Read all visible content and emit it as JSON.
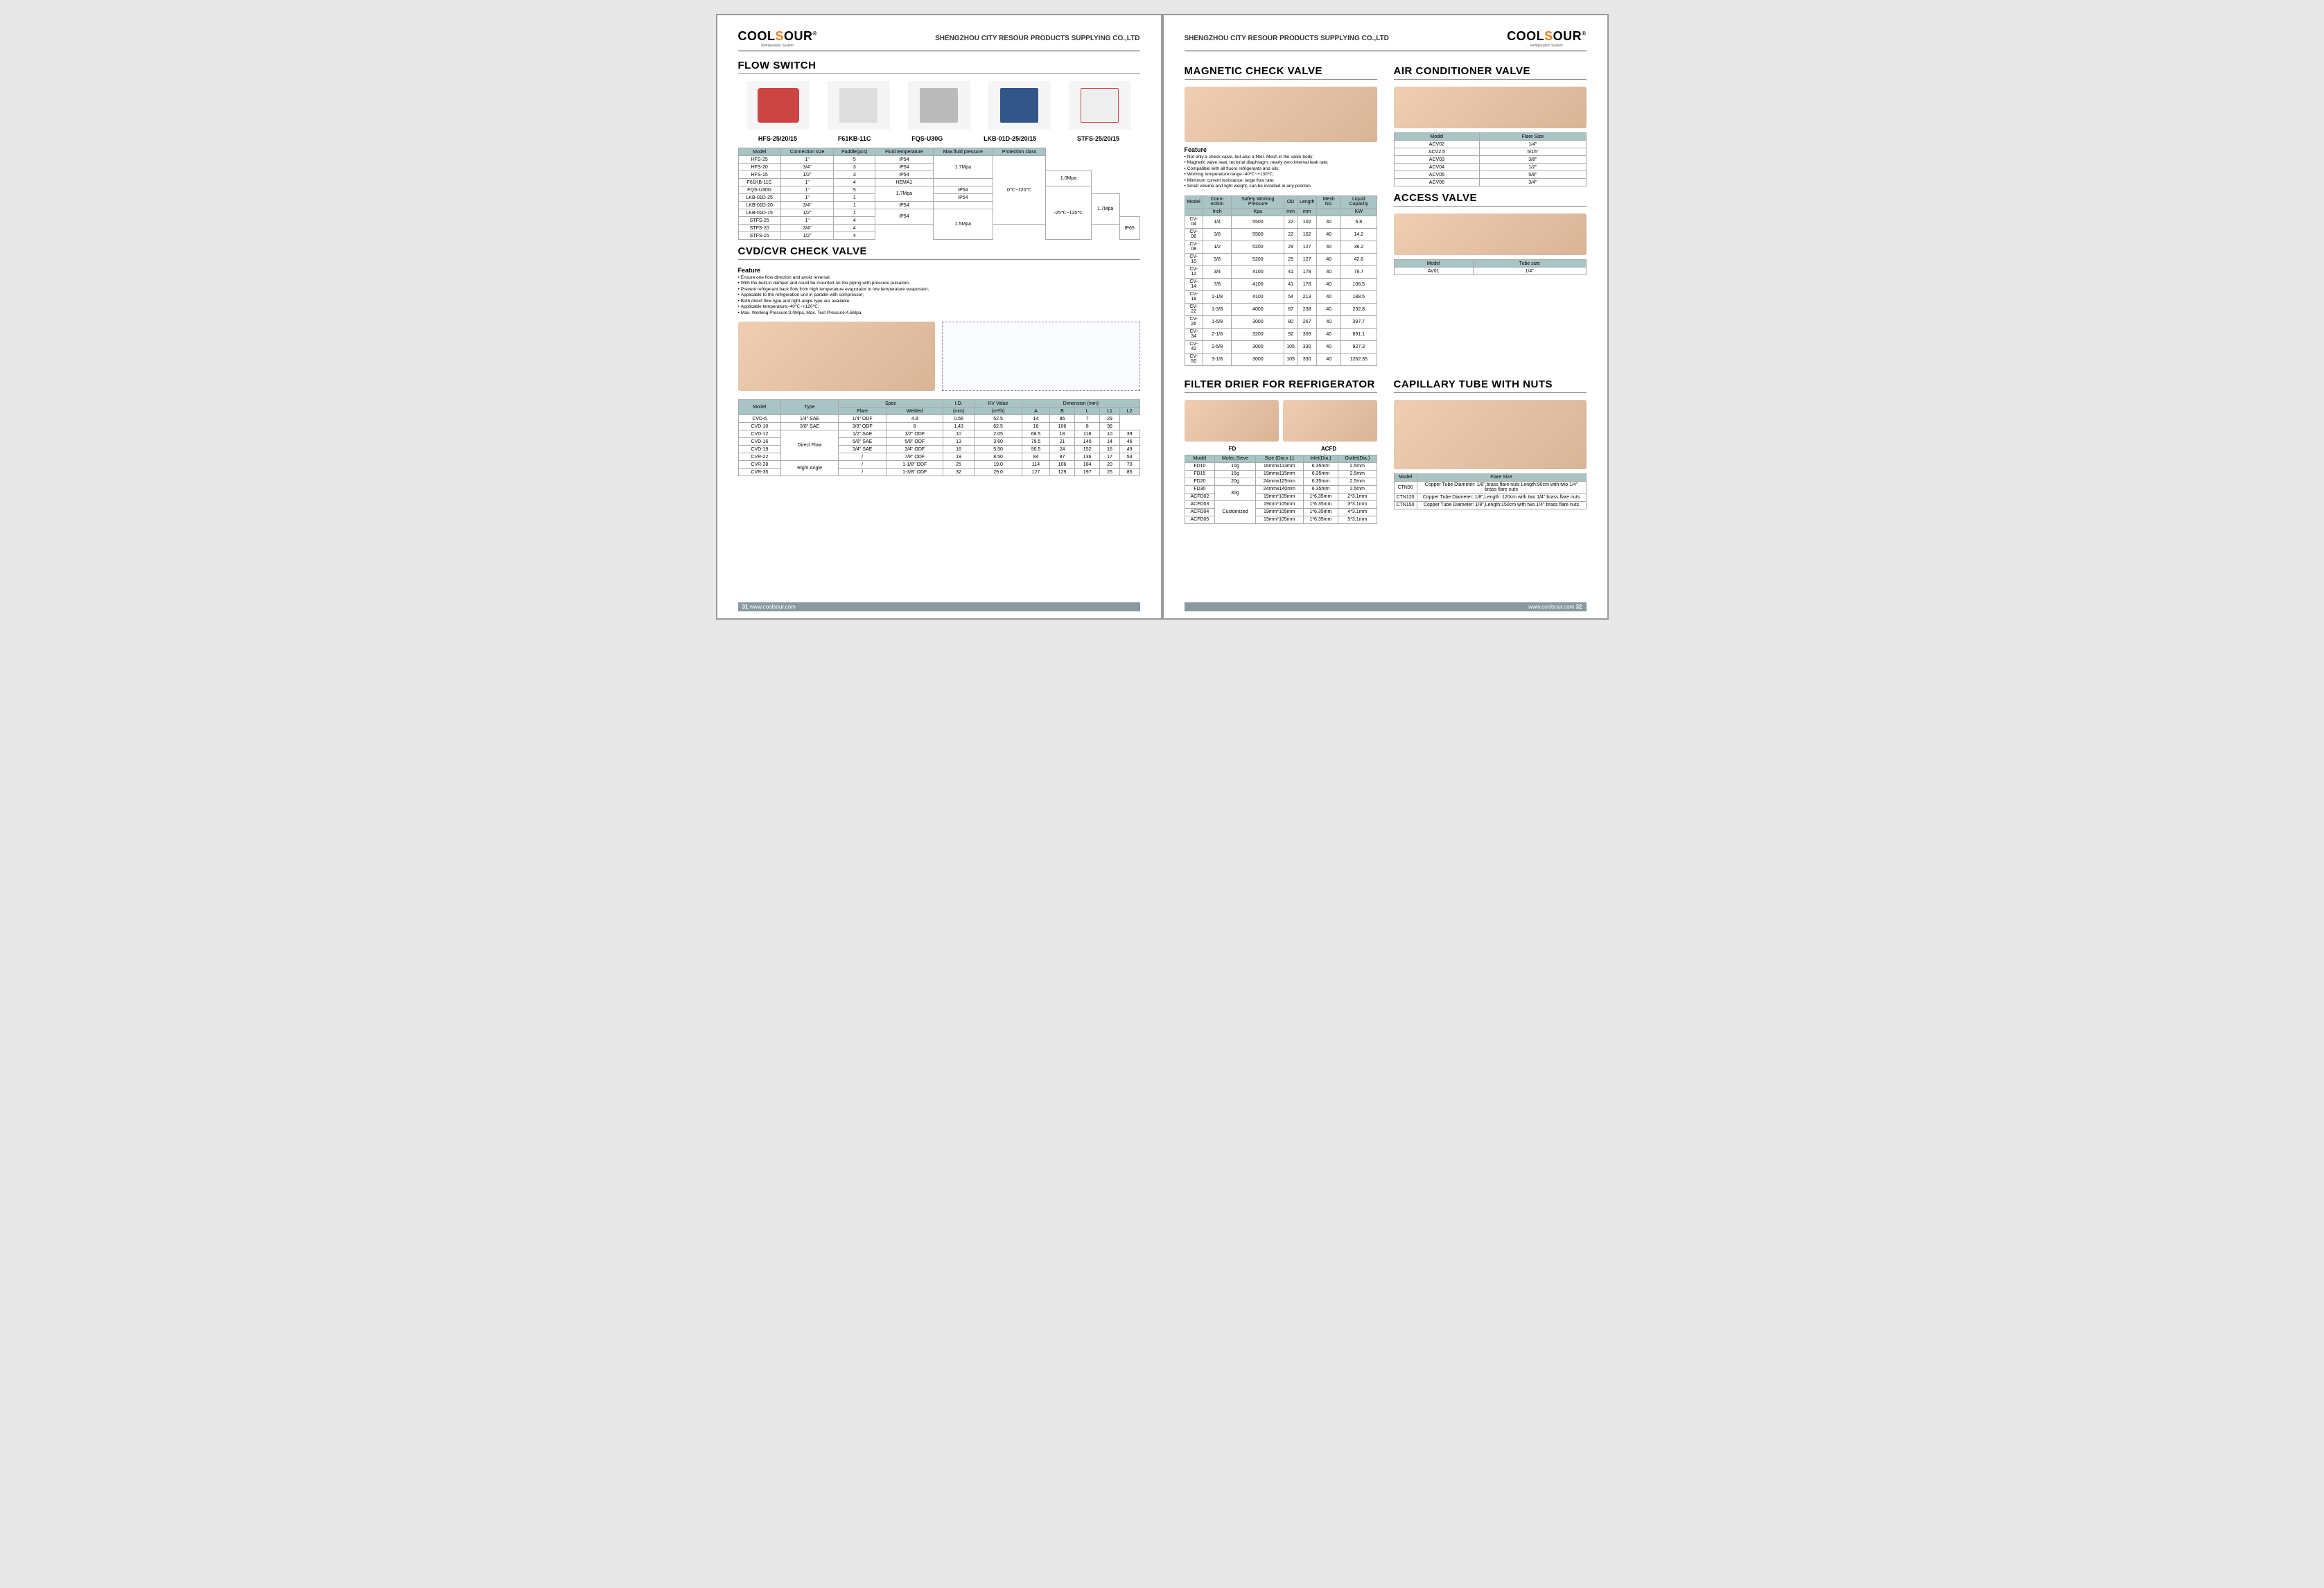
{
  "company": "SHENGZHOU CITY RESOUR PRODUCTS SUPPLYING CO.,LTD",
  "logo": {
    "text1": "COOL",
    "text2": "S",
    "text3": "OUR",
    "sub": "Refrigeration System"
  },
  "website": "www.coolsour.com",
  "page_left": "31",
  "page_right": "32",
  "left": {
    "flow_switch": {
      "title": "FLOW SWITCH",
      "models": [
        "HFS-25/20/15",
        "F61KB-11C",
        "FQS-U30G",
        "LKB-01D-25/20/15",
        "STFS-25/20/15"
      ],
      "table": {
        "headers": [
          "Model",
          "Connection size",
          "Paddle(pcs)",
          "Fluid temperature",
          "Max.fluid pressure",
          "Protection class"
        ],
        "rows": [
          [
            "HFS-25",
            "1\"",
            "5",
            "",
            "",
            "IP54"
          ],
          [
            "HFS-20",
            "3/4\"",
            "3",
            "",
            "1.7Mpa",
            "IP54"
          ],
          [
            "HFS-15",
            "1/2\"",
            "3",
            "",
            "",
            "IP54"
          ],
          [
            "F61KB-11C",
            "1\"",
            "4",
            "0℃~120℃",
            "1.0Mpa",
            "HEMA1"
          ],
          [
            "FQS-U30G",
            "1\"",
            "5",
            "",
            "1.7Mpa",
            "IP54"
          ],
          [
            "LKB-01D-25",
            "1\"",
            "1",
            "",
            "",
            "IP54"
          ],
          [
            "LKB-01D-20",
            "3/4\"",
            "1",
            "",
            "1.7Mpa",
            "IP54"
          ],
          [
            "LKB-01D-15",
            "1/2\"",
            "1",
            "",
            "",
            "IP54"
          ],
          [
            "STFS-25",
            "1\"",
            "4",
            "",
            "",
            ""
          ],
          [
            "STFS-20",
            "3/4\"",
            "4",
            "-25℃~120℃",
            "1.5Mpa",
            "IP65"
          ],
          [
            "STFS-15",
            "1/2\"",
            "4",
            "",
            "",
            ""
          ]
        ]
      }
    },
    "cvd": {
      "title": "CVD/CVR CHECK VALVE",
      "feature_title": "Feature",
      "features": [
        "Ensure one flow direction and avoid reversal;",
        "With the built-in damper and could be mounted on the piping with pressure pulsation;",
        "Prevent refrigerant back flow from high temperature evaporator to low temperature evaporator;",
        "Applicable to the refrigeration unit in parallel with compressor;",
        "Both direct flow type and right-angle type are available.",
        "Applicable temperature:-40℃~+120℃;",
        "Max. Working Pressure:3.0Mpa,  Max. Test Pressure:4.5Mpa."
      ],
      "table": {
        "headers_top": [
          "Model",
          "Type",
          "Spec",
          "I.D.",
          "KV Value",
          "Dimension (mm)"
        ],
        "headers_sub": [
          "",
          "",
          "Flare",
          "Welded",
          "(mm)",
          "(m³/h)",
          "A",
          "B",
          "L",
          "L1",
          "L2"
        ],
        "rows": [
          [
            "CVD-6",
            "",
            "1/4\" SAE",
            "1/4\" ODF",
            "4.8",
            "0.56",
            "52.5",
            "14",
            "86",
            "7",
            "29"
          ],
          [
            "CVD-10",
            "",
            "3/8\" SAE",
            "3/8\" ODF",
            "8",
            "1.43",
            "62.5",
            "16",
            "106",
            "8",
            "36"
          ],
          [
            "CVD-12",
            "Direct Flow",
            "1/2\" SAE",
            "1/2\" ODF",
            "10",
            "2.05",
            "68.5",
            "18",
            "118",
            "10",
            "39"
          ],
          [
            "CVD-16",
            "",
            "5/8\" SAE",
            "5/8\" ODF",
            "13",
            "3.60",
            "79.5",
            "21",
            "140",
            "14",
            "46"
          ],
          [
            "CVD-19",
            "",
            "3/4\" SAE",
            "3/4\" ODF",
            "16",
            "5.50",
            "90.5",
            "24",
            "152",
            "16",
            "49"
          ],
          [
            "CVR-22",
            "",
            "/",
            "7/8\" ODF",
            "19",
            "8.50",
            "84",
            "87",
            "136",
            "17",
            "53"
          ],
          [
            "CVR-28",
            "Right Angle",
            "/",
            "1-1/8\" ODF",
            "25",
            "19.0",
            "114",
            "106",
            "184",
            "20",
            "70"
          ],
          [
            "CVR-35",
            "",
            "/",
            "1-3/8\" ODF",
            "32",
            "29.0",
            "127",
            "129",
            "197",
            "25",
            "85"
          ]
        ]
      }
    }
  },
  "right": {
    "mcv": {
      "title": "MAGNETIC CHECK VALVE",
      "feature_title": "Feature",
      "features": [
        "Not only a check valve, but also a filter. Mesh in the valve body;",
        "Magnetic valve seat, tectorial diaphragm, nearly zero internal leak rate;",
        "Compatible with all fluoro refrigerants and oils;",
        "Working temperature range -40℃~+130℃;",
        "Minimum current resistance, large flow rate;",
        "Small volume and light weight, can be installed in any position."
      ],
      "table": {
        "headers": [
          "Model",
          "Conn-ection",
          "Safety Working Pressure",
          "OD",
          "Length",
          "Mesh No.",
          "Liquid Capacity"
        ],
        "units": [
          "",
          "Inch",
          "Kpa",
          "mm",
          "mm",
          "",
          "KW"
        ],
        "rows": [
          [
            "CV-04",
            "1/4",
            "5500",
            "22",
            "102",
            "40",
            "6.8"
          ],
          [
            "CV-06",
            "3/8",
            "5500",
            "22",
            "102",
            "40",
            "14.2"
          ],
          [
            "CV-08",
            "1/2",
            "5200",
            "29",
            "127",
            "40",
            "38.2"
          ],
          [
            "CV-10",
            "5/8",
            "5200",
            "29",
            "127",
            "40",
            "42.6"
          ],
          [
            "CV-12",
            "3/4",
            "4100",
            "41",
            "178",
            "40",
            "79.7"
          ],
          [
            "CV-14",
            "7/8",
            "4100",
            "41",
            "178",
            "40",
            "108.5"
          ],
          [
            "CV-18",
            "1-1/8",
            "4100",
            "54",
            "213",
            "40",
            "188.5"
          ],
          [
            "CV-22",
            "1-3/8",
            "4000",
            "67",
            "238",
            "40",
            "232.8"
          ],
          [
            "CV-26",
            "1-5/8",
            "3000",
            "80",
            "267",
            "40",
            "397.7"
          ],
          [
            "CV-34",
            "2-1/8",
            "3200",
            "92",
            "305",
            "40",
            "691.1"
          ],
          [
            "CV-42",
            "2-5/8",
            "3000",
            "105",
            "330",
            "40",
            "927.3"
          ],
          [
            "CV-50",
            "3-1/8",
            "3000",
            "105",
            "330",
            "40",
            "1262.35"
          ]
        ]
      }
    },
    "acv": {
      "title": "AIR CONDITIONER VALVE",
      "table": {
        "headers": [
          "Model",
          "Flare Size"
        ],
        "rows": [
          [
            "ACV02",
            "1/4\""
          ],
          [
            "ACV2.5",
            "5/16\""
          ],
          [
            "ACV03",
            "3/8\""
          ],
          [
            "ACV04",
            "1/2\""
          ],
          [
            "ACV05",
            "5/8\""
          ],
          [
            "ACV06",
            "3/4\""
          ]
        ]
      }
    },
    "access": {
      "title": "ACCESS VALVE",
      "table": {
        "headers": [
          "Model",
          "Tube size"
        ],
        "rows": [
          [
            "AV01",
            "1/4\""
          ]
        ]
      }
    },
    "filter": {
      "title": "FILTER DRIER FOR REFRIGERATOR",
      "sub_labels": [
        "FD",
        "ACFD"
      ],
      "table": {
        "headers": [
          "Model",
          "Molec.Sieve",
          "Size (Dia.x L)",
          "Inlet(Dia.)",
          "Outlet(Dia.)"
        ],
        "rows": [
          [
            "FD10",
            "10g",
            "16mmx113mm",
            "6.35mm",
            "2.5mm"
          ],
          [
            "FD15",
            "15g",
            "19mmx115mm",
            "6.35mm",
            "2.5mm"
          ],
          [
            "FD20",
            "20g",
            "24mmx125mm",
            "6.35mm",
            "2.5mm"
          ],
          [
            "FD30",
            "30g",
            "24mmx140mm",
            "6.35mm",
            "2.5mm"
          ],
          [
            "ACFD02",
            "",
            "19mm*105mm",
            "1*6.35mm",
            "2*3.1mm"
          ],
          [
            "ACFD03",
            "Customized",
            "19mm*105mm",
            "1*6.35mm",
            "3*3.1mm"
          ],
          [
            "ACFD04",
            "",
            "19mm*105mm",
            "1*6.35mm",
            "4*3.1mm"
          ],
          [
            "ACFD05",
            "",
            "19mm*105mm",
            "1*6.35mm",
            "5*3.1mm"
          ]
        ]
      }
    },
    "capillary": {
      "title": "CAPILLARY TUBE WITH NUTS",
      "table": {
        "headers": [
          "Model",
          "Flare Size"
        ],
        "rows": [
          [
            "CTN90",
            "Copper Tube Diameter: 1/8\",brass flare nuts Length:90cm with two 1/4\" brass flare nuts"
          ],
          [
            "CTN120",
            "Copper Tube Diameter: 1/8\",Length: 120cm with two 1/4\"   brass flare nuts"
          ],
          [
            "CTN150",
            "Copper Tube Diameter: 1/8\",Length:150cm with two 1/4\" brass  flare nuts"
          ]
        ]
      }
    }
  }
}
